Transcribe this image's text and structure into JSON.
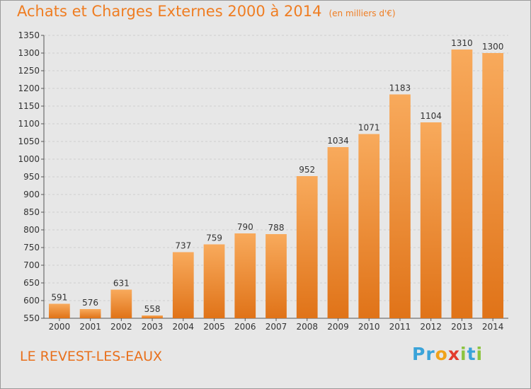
{
  "title": "Achats et Charges Externes 2000 à 2014",
  "subtitle": "(en milliers d'€)",
  "place": "LE REVEST-LES-EAUX",
  "brand": {
    "letters": [
      "P",
      "r",
      "o",
      "x",
      "i",
      "t",
      "i"
    ],
    "colors": [
      "#3aa3d9",
      "#3aa3d9",
      "#f0a21a",
      "#e23b2e",
      "#8cc43f",
      "#3aa3d9",
      "#8cc43f"
    ]
  },
  "colors": {
    "bar_light": "#f8aa5c",
    "bar_dark": "#e07318",
    "title": "#ef7d22"
  },
  "chart_data": {
    "type": "bar",
    "categories": [
      "2000",
      "2001",
      "2002",
      "2003",
      "2004",
      "2005",
      "2006",
      "2007",
      "2008",
      "2009",
      "2010",
      "2011",
      "2012",
      "2013",
      "2014"
    ],
    "values": [
      591,
      576,
      631,
      558,
      737,
      759,
      790,
      788,
      952,
      1034,
      1071,
      1183,
      1104,
      1310,
      1300
    ],
    "ylim": [
      550,
      1350
    ],
    "yticks": [
      550,
      600,
      650,
      700,
      750,
      800,
      850,
      900,
      950,
      1000,
      1050,
      1100,
      1150,
      1200,
      1250,
      1300,
      1350
    ],
    "grid": true,
    "data_labels": true
  }
}
